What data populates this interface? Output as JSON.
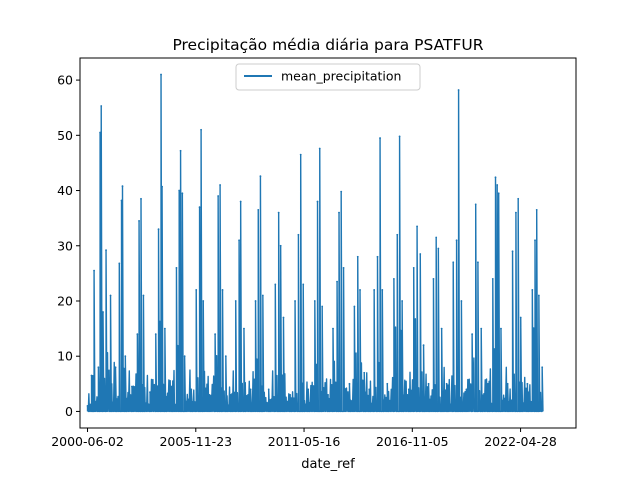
{
  "chart_data": {
    "type": "line",
    "title": "Precipitação média diária para PSATFUR",
    "xlabel": "date_ref",
    "ylabel": "",
    "xlim": [
      "2000-01-15",
      "2025-02-15"
    ],
    "ylim": [
      -3,
      64
    ],
    "legend": {
      "position": "top-center",
      "entries": [
        "mean_precipitation"
      ]
    },
    "x_ticks": [
      "2000-06-02",
      "2005-11-23",
      "2011-05-16",
      "2016-11-05",
      "2022-04-28"
    ],
    "y_ticks": [
      0,
      10,
      20,
      30,
      40,
      50,
      60
    ],
    "series": [
      {
        "name": "mean_precipitation",
        "color": "#1f77b4",
        "sampling": "approximate peak values read from the plot (daily series)",
        "points": [
          [
            "2000-06-02",
            1.0
          ],
          [
            "2000-08-15",
            6.5
          ],
          [
            "2000-10-01",
            25.5
          ],
          [
            "2000-12-20",
            8.0
          ],
          [
            "2001-01-20",
            50.5
          ],
          [
            "2001-02-10",
            55.3
          ],
          [
            "2001-03-15",
            18.0
          ],
          [
            "2001-05-10",
            29.2
          ],
          [
            "2001-08-01",
            21.0
          ],
          [
            "2001-11-01",
            8.0
          ],
          [
            "2002-01-10",
            26.8
          ],
          [
            "2002-02-20",
            38.2
          ],
          [
            "2002-03-10",
            40.8
          ],
          [
            "2002-05-01",
            10.0
          ],
          [
            "2002-09-01",
            4.5
          ],
          [
            "2002-12-10",
            14.0
          ],
          [
            "2003-01-10",
            34.5
          ],
          [
            "2003-02-15",
            38.5
          ],
          [
            "2003-04-01",
            21.0
          ],
          [
            "2003-08-01",
            3.5
          ],
          [
            "2003-11-15",
            14.0
          ],
          [
            "2004-01-05",
            33.0
          ],
          [
            "2004-02-20",
            61.0
          ],
          [
            "2004-03-10",
            40.7
          ],
          [
            "2004-05-01",
            15.0
          ],
          [
            "2004-09-01",
            4.5
          ],
          [
            "2004-12-01",
            26.0
          ],
          [
            "2005-01-20",
            40.0
          ],
          [
            "2005-02-15",
            47.2
          ],
          [
            "2005-03-20",
            39.5
          ],
          [
            "2005-05-01",
            10.0
          ],
          [
            "2005-09-01",
            4.0
          ],
          [
            "2005-12-01",
            22.0
          ],
          [
            "2006-02-01",
            37.0
          ],
          [
            "2006-03-01",
            51.0
          ],
          [
            "2006-04-10",
            20.0
          ],
          [
            "2006-08-01",
            3.0
          ],
          [
            "2006-11-15",
            14.0
          ],
          [
            "2007-01-10",
            39.0
          ],
          [
            "2007-02-15",
            41.0
          ],
          [
            "2007-04-01",
            22.0
          ],
          [
            "2007-06-01",
            10.0
          ],
          [
            "2007-09-01",
            3.0
          ],
          [
            "2007-12-01",
            20.0
          ],
          [
            "2008-02-01",
            31.0
          ],
          [
            "2008-03-01",
            38.0
          ],
          [
            "2008-05-01",
            15.0
          ],
          [
            "2008-09-01",
            4.0
          ],
          [
            "2008-12-01",
            20.0
          ],
          [
            "2009-01-20",
            36.5
          ],
          [
            "2009-03-01",
            42.6
          ],
          [
            "2009-04-15",
            21.0
          ],
          [
            "2009-08-01",
            4.0
          ],
          [
            "2009-12-01",
            23.0
          ],
          [
            "2010-02-01",
            36.0
          ],
          [
            "2010-03-10",
            30.0
          ],
          [
            "2010-05-01",
            17.0
          ],
          [
            "2010-09-01",
            3.0
          ],
          [
            "2010-12-01",
            20.0
          ],
          [
            "2011-02-01",
            32.0
          ],
          [
            "2011-03-15",
            46.5
          ],
          [
            "2011-05-01",
            23.0
          ],
          [
            "2011-08-01",
            4.0
          ],
          [
            "2011-12-01",
            20.0
          ],
          [
            "2012-01-20",
            38.0
          ],
          [
            "2012-03-01",
            47.6
          ],
          [
            "2012-04-15",
            19.0
          ],
          [
            "2012-08-01",
            3.0
          ],
          [
            "2012-11-01",
            15.0
          ],
          [
            "2013-01-15",
            23.5
          ],
          [
            "2013-02-20",
            36.0
          ],
          [
            "2013-04-01",
            39.8
          ],
          [
            "2013-05-15",
            26.0
          ],
          [
            "2013-09-01",
            5.0
          ],
          [
            "2013-12-01",
            19.0
          ],
          [
            "2014-02-01",
            28.0
          ],
          [
            "2014-03-15",
            22.0
          ],
          [
            "2014-06-01",
            7.0
          ],
          [
            "2014-09-01",
            4.0
          ],
          [
            "2014-12-01",
            22.0
          ],
          [
            "2015-02-01",
            28.0
          ],
          [
            "2015-03-20",
            49.5
          ],
          [
            "2015-05-01",
            22.0
          ],
          [
            "2015-08-01",
            5.0
          ],
          [
            "2015-12-01",
            24.0
          ],
          [
            "2016-02-01",
            32.0
          ],
          [
            "2016-03-15",
            49.8
          ],
          [
            "2016-05-01",
            20.0
          ],
          [
            "2016-09-01",
            4.0
          ],
          [
            "2016-12-01",
            26.0
          ],
          [
            "2017-02-01",
            33.5
          ],
          [
            "2017-04-01",
            28.5
          ],
          [
            "2017-06-01",
            12.0
          ],
          [
            "2017-09-01",
            5.0
          ],
          [
            "2017-12-01",
            24.0
          ],
          [
            "2018-01-20",
            31.5
          ],
          [
            "2018-03-01",
            29.5
          ],
          [
            "2018-05-01",
            15.0
          ],
          [
            "2018-08-01",
            5.0
          ],
          [
            "2018-12-01",
            27.0
          ],
          [
            "2019-02-01",
            31.0
          ],
          [
            "2019-03-10",
            58.2
          ],
          [
            "2019-05-01",
            20.0
          ],
          [
            "2019-08-01",
            4.0
          ],
          [
            "2019-11-15",
            14.0
          ],
          [
            "2020-01-20",
            37.5
          ],
          [
            "2020-03-01",
            27.0
          ],
          [
            "2020-05-01",
            15.0
          ],
          [
            "2020-09-01",
            5.0
          ],
          [
            "2020-12-01",
            24.0
          ],
          [
            "2021-01-20",
            42.4
          ],
          [
            "2021-02-20",
            41.0
          ],
          [
            "2021-03-20",
            39.5
          ],
          [
            "2021-05-01",
            15.0
          ],
          [
            "2021-09-01",
            5.0
          ],
          [
            "2021-12-01",
            29.0
          ],
          [
            "2022-02-01",
            36.0
          ],
          [
            "2022-03-15",
            38.5
          ],
          [
            "2022-05-01",
            17.0
          ],
          [
            "2022-09-01",
            5.0
          ],
          [
            "2022-12-01",
            22.0
          ],
          [
            "2023-01-20",
            31.0
          ],
          [
            "2023-02-20",
            36.5
          ],
          [
            "2023-04-01",
            21.0
          ],
          [
            "2023-06-01",
            8.0
          ]
        ]
      }
    ]
  }
}
